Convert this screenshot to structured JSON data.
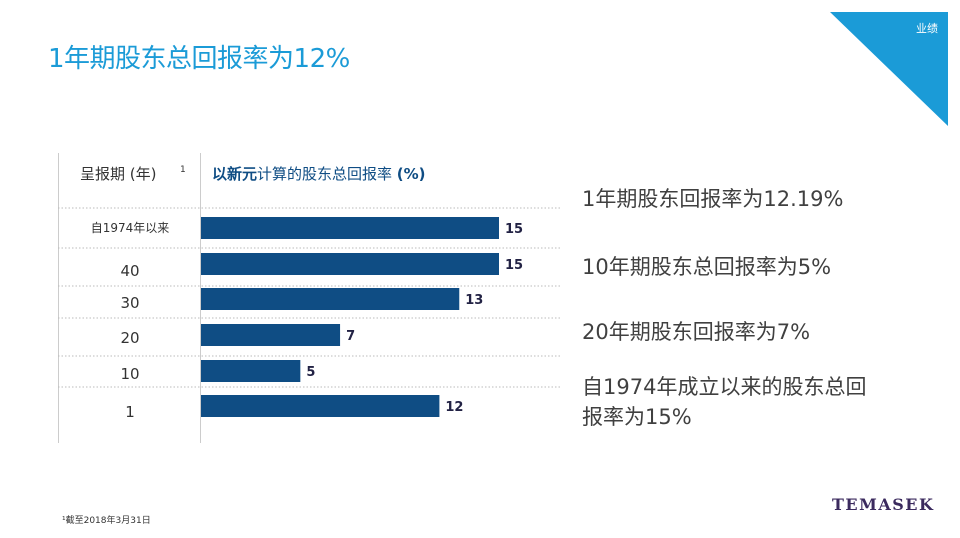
{
  "title": "1年期股东总回报率为12%",
  "corner_tag": "业绩",
  "table_header": {
    "left": "呈报期 (年)",
    "left_note": "1",
    "right_bold": "以新元",
    "right_mid": "计算的股东总回报率 ",
    "right_tail": "(%)"
  },
  "summary": {
    "line1": "1年期股东回报率为12.19%",
    "line2": "10年期股东总回报率为5%",
    "line3": "20年期股东回报率为7%",
    "line4a": "自1974年成立以来的股东总回",
    "line4b": "报率为15%"
  },
  "footnote": "¹截至2018年3月31日",
  "logo": "TEMASEK",
  "colors": {
    "title": "#1b9bd7",
    "bar": "#0f4d84",
    "corner": "#1b9bd7"
  },
  "chart_data": {
    "type": "bar",
    "orientation": "horizontal",
    "categories": [
      "自1974年以来",
      "40",
      "30",
      "20",
      "10",
      "1"
    ],
    "values": [
      15,
      15,
      13,
      7,
      5,
      12
    ],
    "xlim": [
      0,
      15
    ],
    "grid": false
  }
}
